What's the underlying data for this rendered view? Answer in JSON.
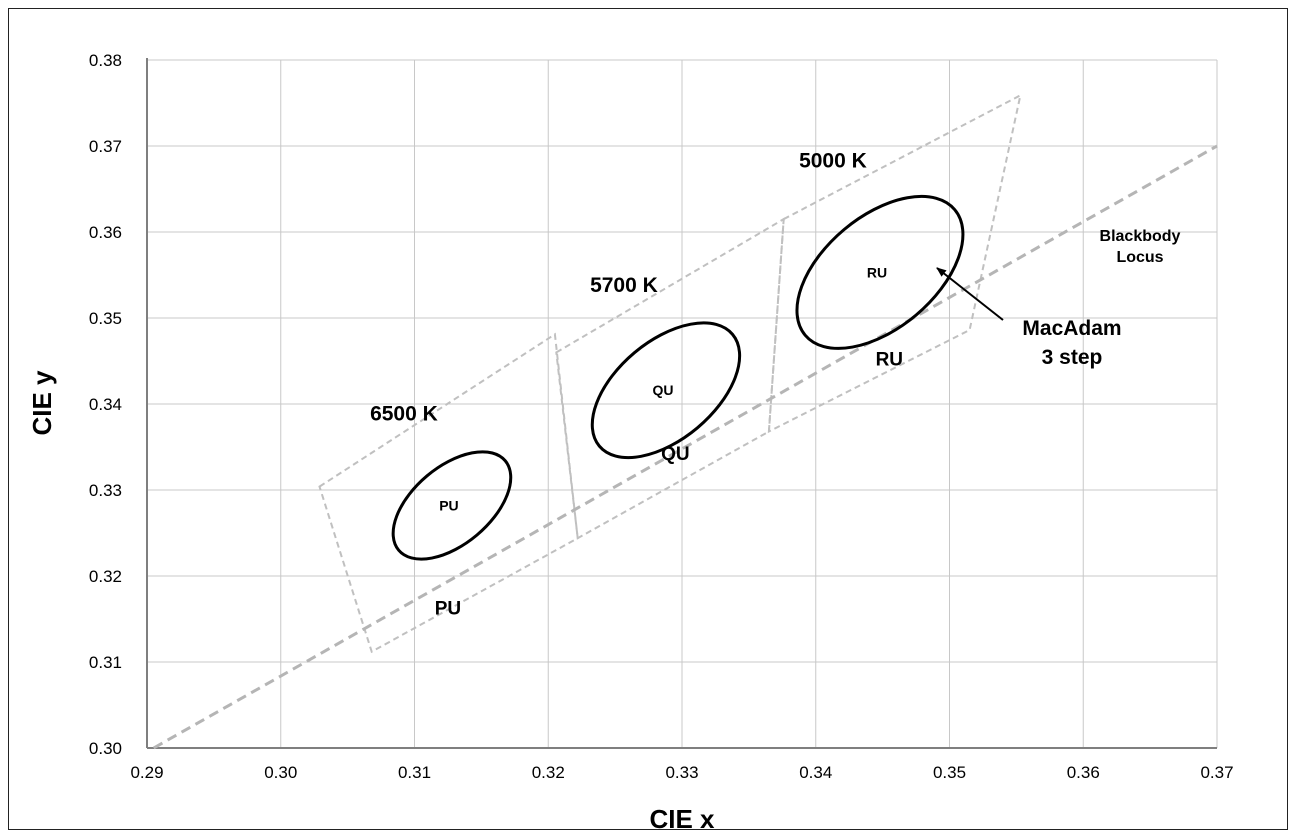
{
  "chart_data": {
    "type": "scatter",
    "xlabel": "CIE x",
    "ylabel": "CIE y",
    "xlim": [
      0.29,
      0.37
    ],
    "ylim": [
      0.3,
      0.38
    ],
    "xticks": [
      "0.29",
      "0.30",
      "0.31",
      "0.32",
      "0.33",
      "0.34",
      "0.35",
      "0.36",
      "0.37"
    ],
    "yticks": [
      "0.30",
      "0.31",
      "0.32",
      "0.33",
      "0.34",
      "0.35",
      "0.36",
      "0.37",
      "0.38"
    ],
    "grid": true,
    "blackbody_locus": {
      "label": "Blackbody Locus",
      "label_lines": [
        "Blackbody",
        "Locus"
      ],
      "points": [
        [
          0.2905,
          0.3
        ],
        [
          0.37,
          0.37
        ]
      ]
    },
    "bins": [
      {
        "name": "PU",
        "corners": [
          [
            0.3029,
            0.3304
          ],
          [
            0.3205,
            0.3481
          ],
          [
            0.3222,
            0.3244
          ],
          [
            0.3068,
            0.3112
          ]
        ],
        "label_at": [
          0.3125,
          0.3155
        ]
      },
      {
        "name": "QU",
        "corners": [
          [
            0.3206,
            0.346
          ],
          [
            0.3376,
            0.3615
          ],
          [
            0.3365,
            0.3368
          ],
          [
            0.3222,
            0.3244
          ]
        ],
        "label_at": [
          0.3295,
          0.3335
        ]
      },
      {
        "name": "RU",
        "corners": [
          [
            0.3376,
            0.3615
          ],
          [
            0.3553,
            0.3759
          ],
          [
            0.3515,
            0.3486
          ],
          [
            0.3365,
            0.3368
          ]
        ],
        "label_at": [
          0.3455,
          0.3445
        ]
      }
    ],
    "ellipses": [
      {
        "cct": "6500 K",
        "bin": "PU",
        "center": [
          0.3128,
          0.3282
        ],
        "rx": 0.0052,
        "ry": 0.0045,
        "angle_deg": -40
      },
      {
        "cct": "5700 K",
        "bin": "QU",
        "center": [
          0.3288,
          0.3416
        ],
        "rx": 0.0065,
        "ry": 0.0057,
        "angle_deg": -40
      },
      {
        "cct": "5000 K",
        "bin": "RU",
        "center": [
          0.3448,
          0.3553
        ],
        "rx": 0.0073,
        "ry": 0.0065,
        "angle_deg": -40
      }
    ],
    "annotation": {
      "text_lines": [
        "MacAdam",
        "3 step"
      ]
    }
  }
}
